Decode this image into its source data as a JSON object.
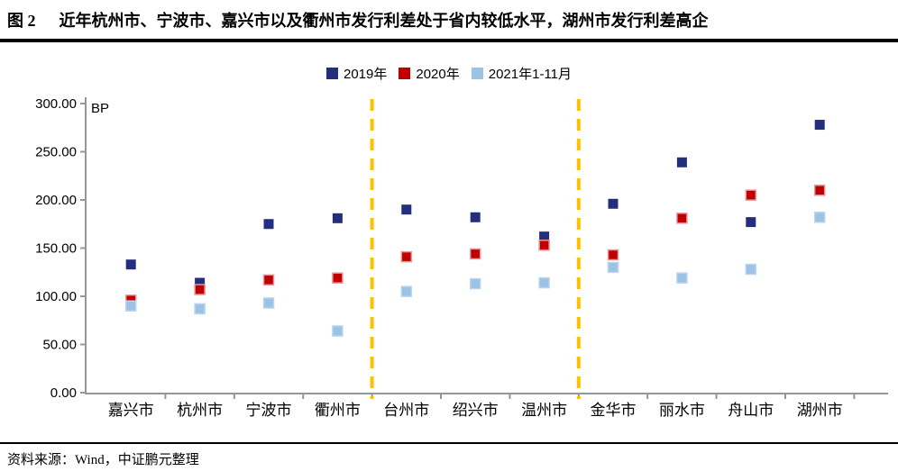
{
  "figure": {
    "label": "图 2",
    "title": "近年杭州市、宁波市、嘉兴市以及衢州市发行利差处于省内较低水平，湖州市发行利差高企"
  },
  "footer": {
    "source": "资料来源：Wind，中证鹏元整理"
  },
  "colors": {
    "series_2019": "#232F7E",
    "series_2020": "#C00000",
    "series_2020_border": "#E59898",
    "series_2021": "#9CC2E5",
    "series_2021_border": "#BAD5EE",
    "separator": "#FFC000",
    "axis": "#969696",
    "text": "#000000"
  },
  "chart_data": {
    "type": "scatter",
    "title": "近年杭州市、宁波市、嘉兴市以及衢州市发行利差处于省内较低水平，湖州市发行利差高企",
    "unit_label": "BP",
    "xlabel": "",
    "ylabel": "BP",
    "ylim": [
      0,
      300
    ],
    "ytick_step": 50,
    "grid": false,
    "legend_position": "top",
    "categories": [
      "嘉兴市",
      "杭州市",
      "宁波市",
      "衢州市",
      "台州市",
      "绍兴市",
      "温州市",
      "金华市",
      "丽水市",
      "舟山市",
      "湖州市"
    ],
    "series": [
      {
        "name": "2019年",
        "color_key": "series_2019",
        "border_key": "",
        "values": [
          133,
          114,
          175,
          181,
          190,
          182,
          162,
          196,
          239,
          177,
          278
        ]
      },
      {
        "name": "2020年",
        "color_key": "series_2020",
        "border_key": "series_2020_border",
        "values": [
          96,
          107,
          117,
          119,
          141,
          144,
          153,
          143,
          181,
          205,
          210
        ]
      },
      {
        "name": "2021年1-11月",
        "color_key": "series_2021",
        "border_key": "series_2021_border",
        "values": [
          90,
          87,
          93,
          64,
          105,
          113,
          114,
          130,
          119,
          128,
          182
        ]
      }
    ],
    "yticks": [
      {
        "value": 300,
        "label": "300.00"
      },
      {
        "value": 250,
        "label": "250.00"
      },
      {
        "value": 200,
        "label": "200.00"
      },
      {
        "value": 150,
        "label": "150.00"
      },
      {
        "value": 100,
        "label": "100.00"
      },
      {
        "value": 50,
        "label": "50.00"
      },
      {
        "value": 0,
        "label": "0.00"
      }
    ],
    "separator_boundaries": [
      4,
      7
    ]
  }
}
